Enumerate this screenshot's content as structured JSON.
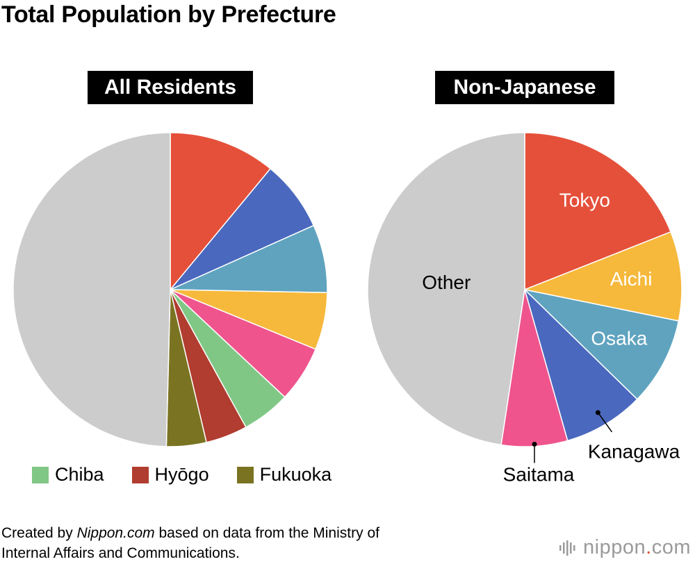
{
  "title": "Total Population by Prefecture",
  "chart_data": [
    {
      "type": "pie",
      "title": "All Residents",
      "start_angle_deg": 0,
      "direction": "clockwise",
      "slices": [
        {
          "label": "Tokyo",
          "value": 11.0,
          "color": "#e5503a"
        },
        {
          "label": "Kanagawa",
          "value": 7.3,
          "color": "#4a68be"
        },
        {
          "label": "Osaka",
          "value": 7.0,
          "color": "#5fa3bf"
        },
        {
          "label": "Aichi",
          "value": 5.9,
          "color": "#f6b93c"
        },
        {
          "label": "Saitama",
          "value": 5.8,
          "color": "#ef548d"
        },
        {
          "label": "Chiba",
          "value": 5.0,
          "color": "#80c786"
        },
        {
          "label": "Hyōgo",
          "value": 4.3,
          "color": "#b03d2f"
        },
        {
          "label": "Fukuoka",
          "value": 4.1,
          "color": "#7a7422"
        },
        {
          "label": "Other",
          "value": 49.6,
          "color": "#cccccc"
        }
      ]
    },
    {
      "type": "pie",
      "title": "Non-Japanese",
      "start_angle_deg": 0,
      "direction": "clockwise",
      "slices": [
        {
          "label": "Tokyo",
          "value": 19.0,
          "color": "#e5503a"
        },
        {
          "label": "Aichi",
          "value": 9.2,
          "color": "#f6b93c"
        },
        {
          "label": "Osaka",
          "value": 9.1,
          "color": "#5fa3bf"
        },
        {
          "label": "Kanagawa",
          "value": 8.3,
          "color": "#4a68be"
        },
        {
          "label": "Saitama",
          "value": 6.8,
          "color": "#ef548d"
        },
        {
          "label": "Other",
          "value": 47.6,
          "color": "#cccccc"
        }
      ]
    }
  ],
  "legend": [
    {
      "label": "Chiba",
      "color": "#80c786"
    },
    {
      "label": "Hyōgo",
      "color": "#b03d2f"
    },
    {
      "label": "Fukuoka",
      "color": "#7a7422"
    }
  ],
  "credit": {
    "prefix": "Created by ",
    "site": "Nippon.com",
    "suffix": " based on data from the Ministry of",
    "line2": "Internal Affairs and Communications."
  },
  "brand": {
    "name": "nippon",
    "dot": ".",
    "tld": "com"
  }
}
